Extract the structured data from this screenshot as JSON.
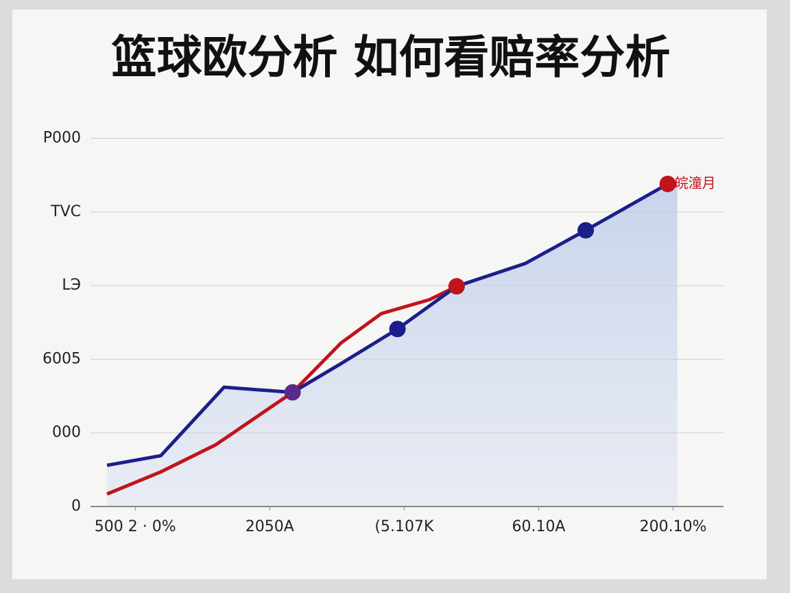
{
  "chart_data": {
    "type": "line",
    "title": "篮球欧分析 如何看赔率分析",
    "xlim": [
      -0.2,
      4.4
    ],
    "xticks": [
      {
        "value": 0,
        "label": "500 2 · 0%"
      },
      {
        "value": 1,
        "label": "2050A"
      },
      {
        "value": 2,
        "label": "(5.107K"
      },
      {
        "value": 3,
        "label": "60.10A"
      },
      {
        "value": 4,
        "label": "200.10%"
      }
    ],
    "ylim": [
      0,
      5.2
    ],
    "yticks": [
      0,
      {
        "value": 1,
        "label": "000"
      },
      {
        "value": 2,
        "label": "6005"
      },
      {
        "value": 3,
        "label": "LЭ"
      },
      {
        "value": 4,
        "label": "TVC"
      },
      {
        "value": 5,
        "label": "P000"
      }
    ],
    "grid": true,
    "series": [
      {
        "color": "#c0141c",
        "x": [
          -0.21,
          0.19,
          0.6,
          1.17,
          1.53,
          1.83,
          2.19,
          2.39
        ],
        "values": [
          0.17,
          0.47,
          0.84,
          1.55,
          2.22,
          2.62,
          2.81,
          2.99
        ],
        "markers": [
          7
        ]
      },
      {
        "color": "#1c1f8a",
        "x": [
          -0.21,
          0.19,
          0.66,
          1.17,
          1.53,
          1.95,
          2.39,
          2.9,
          3.35,
          3.96
        ],
        "values": [
          0.56,
          0.69,
          1.62,
          1.55,
          1.94,
          2.41,
          2.99,
          3.3,
          3.75,
          4.38
        ],
        "markers": [
          3,
          5,
          8
        ],
        "area": true
      }
    ],
    "annotation": {
      "text": "皖潼月",
      "x": 3.96,
      "y": 4.38,
      "color": "#c0141c"
    }
  }
}
